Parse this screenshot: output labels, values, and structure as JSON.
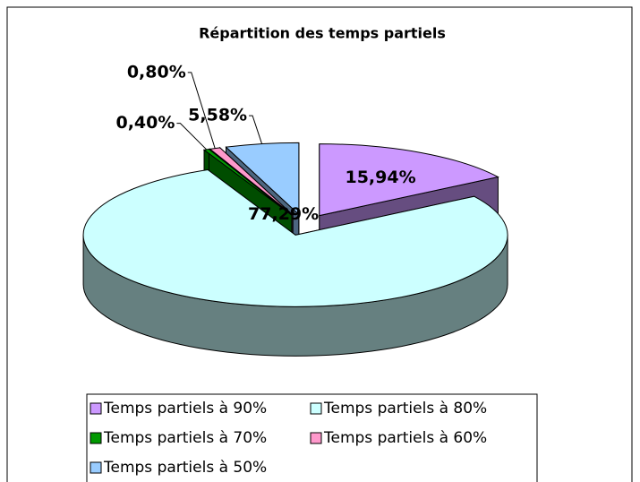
{
  "chart_data": {
    "type": "pie3d",
    "title": "Répartition des temps partiels",
    "categories": [
      "Temps partiels à 90%",
      "Temps partiels à 80%",
      "Temps partiels à 70%",
      "Temps partiels à 60%",
      "Temps partiels à 50%"
    ],
    "values": [
      15.94,
      77.29,
      0.4,
      0.8,
      5.58
    ],
    "value_labels": [
      "15,94%",
      "77,29%",
      "0,40%",
      "0,80%",
      "5,58%"
    ],
    "colors": [
      "#cc99ff",
      "#ccffff",
      "#009900",
      "#ff99cc",
      "#99ccff"
    ],
    "legend": "bottom"
  }
}
